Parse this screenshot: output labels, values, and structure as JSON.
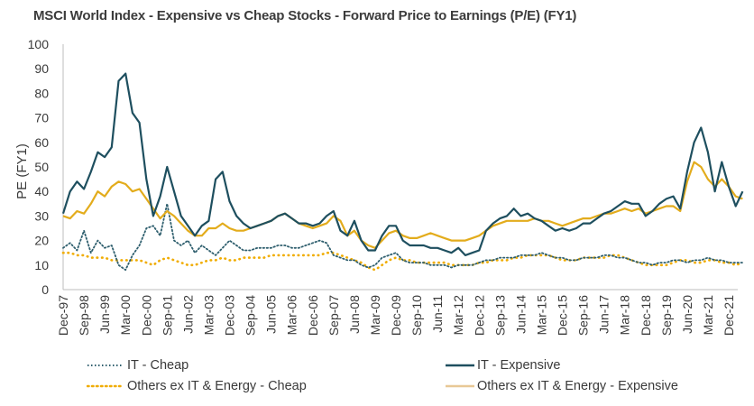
{
  "title": "MSCI World Index - Expensive vs Cheap Stocks - Forward Price to Earnings (P/E) (FY1)",
  "chart_data": {
    "type": "line",
    "title": "MSCI World Index - Expensive vs Cheap Stocks - Forward Price to Earnings (P/E) (FY1)",
    "xlabel": "",
    "ylabel": "PE (FY1)",
    "ylim": [
      0,
      100
    ],
    "yticks": [
      0,
      10,
      20,
      30,
      40,
      50,
      60,
      70,
      80,
      90,
      100
    ],
    "grid": false,
    "legend_position": "bottom",
    "x_frequency": "quarterly",
    "x_start": "Dec-97",
    "x_end": "Jun-22",
    "xtick_labels": [
      "Dec-97",
      "Sep-98",
      "Jun-99",
      "Mar-00",
      "Dec-00",
      "Sep-01",
      "Jun-02",
      "Mar-03",
      "Dec-03",
      "Sep-04",
      "Jun-05",
      "Mar-06",
      "Dec-06",
      "Sep-07",
      "Jun-08",
      "Mar-09",
      "Dec-09",
      "Sep-10",
      "Jun-11",
      "Mar-12",
      "Dec-12",
      "Sep-13",
      "Jun-14",
      "Mar-15",
      "Dec-15",
      "Sep-16",
      "Jun-17",
      "Mar-18",
      "Dec-18",
      "Sep-19",
      "Jun-20",
      "Mar-21",
      "Dec-21"
    ],
    "series": [
      {
        "name": "IT - Cheap",
        "style": "dotted",
        "color": "#2f5f6e",
        "values": [
          17,
          19,
          16,
          24,
          15,
          20,
          17,
          18,
          10,
          8,
          14,
          18,
          25,
          26,
          22,
          35,
          20,
          18,
          20,
          15,
          18,
          16,
          14,
          17,
          20,
          18,
          16,
          16,
          17,
          17,
          17,
          18,
          18,
          17,
          17,
          18,
          19,
          20,
          19,
          14,
          13,
          12,
          12,
          10,
          9,
          10,
          13,
          14,
          15,
          12,
          11,
          11,
          11,
          10,
          10,
          10,
          9,
          10,
          10,
          10,
          11,
          12,
          12,
          13,
          13,
          13,
          14,
          14,
          14,
          15,
          14,
          13,
          13,
          12,
          12,
          13,
          13,
          13,
          14,
          14,
          13,
          13,
          12,
          11,
          11,
          10,
          11,
          11,
          12,
          12,
          11,
          12,
          12,
          13,
          12,
          12,
          11,
          11,
          11
        ]
      },
      {
        "name": "IT - Expensive",
        "style": "solid",
        "color": "#1e4f5f",
        "values": [
          31,
          40,
          44,
          41,
          48,
          56,
          54,
          58,
          85,
          88,
          72,
          68,
          45,
          30,
          38,
          50,
          40,
          30,
          26,
          22,
          26,
          28,
          45,
          48,
          36,
          30,
          27,
          25,
          26,
          27,
          28,
          30,
          31,
          29,
          27,
          27,
          26,
          27,
          30,
          32,
          24,
          22,
          28,
          20,
          16,
          16,
          22,
          26,
          26,
          20,
          18,
          18,
          18,
          17,
          17,
          16,
          15,
          17,
          14,
          15,
          16,
          24,
          27,
          29,
          30,
          33,
          30,
          31,
          29,
          28,
          26,
          24,
          25,
          24,
          25,
          27,
          27,
          29,
          31,
          32,
          34,
          36,
          35,
          35,
          30,
          32,
          35,
          37,
          38,
          33,
          48,
          60,
          66,
          56,
          40,
          52,
          42,
          34,
          40
        ]
      },
      {
        "name": "Others ex IT & Energy - Cheap",
        "style": "dotted",
        "color": "#f0ac00",
        "values": [
          15,
          15,
          14,
          14,
          13,
          13,
          13,
          12,
          12,
          12,
          12,
          12,
          11,
          10,
          12,
          13,
          12,
          11,
          10,
          10,
          11,
          12,
          12,
          13,
          12,
          12,
          13,
          13,
          13,
          13,
          14,
          14,
          14,
          14,
          14,
          14,
          14,
          14,
          15,
          15,
          14,
          13,
          12,
          11,
          9,
          8,
          10,
          12,
          13,
          12,
          12,
          11,
          11,
          11,
          11,
          11,
          10,
          10,
          10,
          10,
          11,
          11,
          12,
          12,
          12,
          13,
          13,
          14,
          14,
          14,
          14,
          13,
          12,
          12,
          12,
          13,
          13,
          13,
          13,
          14,
          14,
          13,
          12,
          11,
          10,
          10,
          10,
          10,
          11,
          12,
          12,
          11,
          11,
          12,
          12,
          11,
          11,
          10,
          11
        ]
      },
      {
        "name": "Others ex IT & Energy - Expensive",
        "style": "solid",
        "color": "#e3ac1c",
        "values": [
          30,
          29,
          32,
          31,
          35,
          40,
          38,
          42,
          44,
          43,
          40,
          41,
          37,
          33,
          29,
          32,
          30,
          27,
          24,
          22,
          22,
          25,
          25,
          27,
          25,
          24,
          24,
          25,
          26,
          27,
          28,
          30,
          31,
          29,
          27,
          26,
          25,
          26,
          27,
          30,
          28,
          22,
          24,
          20,
          18,
          17,
          20,
          23,
          24,
          22,
          21,
          21,
          22,
          23,
          22,
          21,
          20,
          20,
          20,
          21,
          22,
          24,
          26,
          27,
          28,
          28,
          28,
          28,
          29,
          28,
          28,
          27,
          26,
          27,
          28,
          29,
          29,
          30,
          31,
          31,
          32,
          33,
          32,
          33,
          31,
          32,
          33,
          34,
          34,
          32,
          44,
          52,
          50,
          45,
          42,
          45,
          42,
          38,
          37
        ]
      }
    ]
  },
  "legend": [
    {
      "label": "IT - Cheap"
    },
    {
      "label": "IT - Expensive"
    },
    {
      "label": "Others ex IT & Energy - Cheap"
    },
    {
      "label": "Others ex IT & Energy - Expensive"
    }
  ]
}
